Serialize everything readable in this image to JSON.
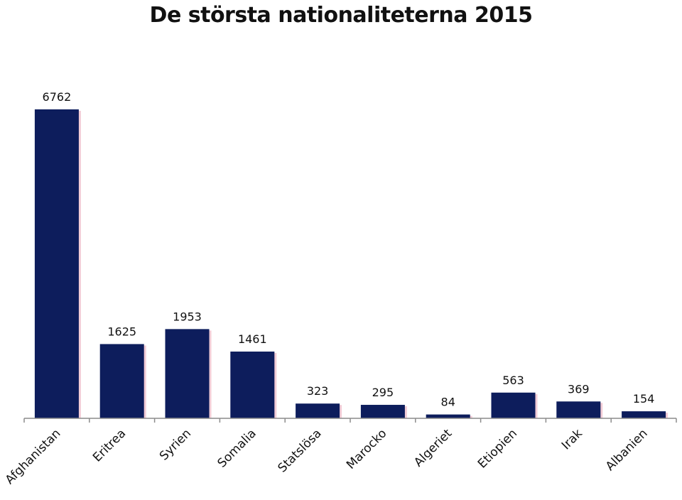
{
  "chart_data": {
    "type": "bar",
    "title": "De största nationaliteterna 2015",
    "xlabel": "",
    "ylabel": "",
    "categories": [
      "Afghanistan",
      "Eritrea",
      "Syrien",
      "Somalia",
      "Statslösa",
      "Marocko",
      "Algeriet",
      "Etiopien",
      "Irak",
      "Albanien"
    ],
    "values": [
      6762,
      1625,
      1953,
      1461,
      323,
      295,
      84,
      563,
      369,
      154
    ],
    "value_labels": [
      "6762",
      "1625",
      "1953",
      "1461",
      "323",
      "295",
      "84",
      "563",
      "369",
      "154"
    ],
    "ylim": [
      0,
      6762
    ],
    "grid": false,
    "legend": "none",
    "colors": {
      "bar": "#0d1d5c",
      "bar_shadow": "#e8a3b4",
      "axis": "#8c8c8c"
    }
  }
}
